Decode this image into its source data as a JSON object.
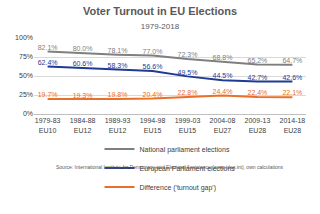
{
  "chart_data": {
    "type": "line",
    "title": "Voter Turnout in EU Elections",
    "subtitle": "1979-2018",
    "categories": [
      "1979-83 EU10",
      "1984-88 EU12",
      "1989-93 EU12",
      "1994-98 EU15",
      "1999-03 EU15",
      "2004-08 EU27",
      "2009-13 EU28",
      "2014-18 EU28"
    ],
    "series": [
      {
        "name": "National parliament elections",
        "color": "#7f7f7f",
        "values": [
          82.1,
          80.0,
          78.1,
          77.0,
          72.3,
          68.8,
          65.2,
          64.7
        ],
        "value_labels": [
          "82.1%",
          "80.0%",
          "78.1%",
          "77.0%",
          "72.3%",
          "68.8%",
          "65.2%",
          "64.7%"
        ]
      },
      {
        "name": "European Parliament elections",
        "color": "#1f3a93",
        "values": [
          62.4,
          60.6,
          58.3,
          56.6,
          49.5,
          44.5,
          42.7,
          42.6
        ],
        "value_labels": [
          "62.4%",
          "60.6%",
          "58.3%",
          "56.6%",
          "49.5%",
          "44.5%",
          "42.7%",
          "42.6%"
        ]
      },
      {
        "name": "Difference ('turnout gap')",
        "color": "#e8702a",
        "values": [
          19.7,
          19.3,
          19.8,
          20.4,
          22.8,
          24.4,
          22.4,
          22.1
        ],
        "value_labels": [
          "19.7%",
          "19.3%",
          "19.8%",
          "20.4%",
          "22.8%",
          "24.4%",
          "22.4%",
          "22.1%"
        ]
      }
    ],
    "ylim": [
      0,
      100
    ],
    "yticks": [
      {
        "value": 0,
        "label": "0%"
      },
      {
        "value": 25,
        "label": "25%"
      },
      {
        "value": 50,
        "label": "50%"
      },
      {
        "value": 75,
        "label": "75%"
      },
      {
        "value": 100,
        "label": "100%"
      }
    ],
    "grid": true,
    "data_labels": true,
    "legend": "bottom",
    "annotations": [
      "Source: International Institute for Democracy and Electoral Assistance (www.idea.int), own calculations"
    ]
  }
}
